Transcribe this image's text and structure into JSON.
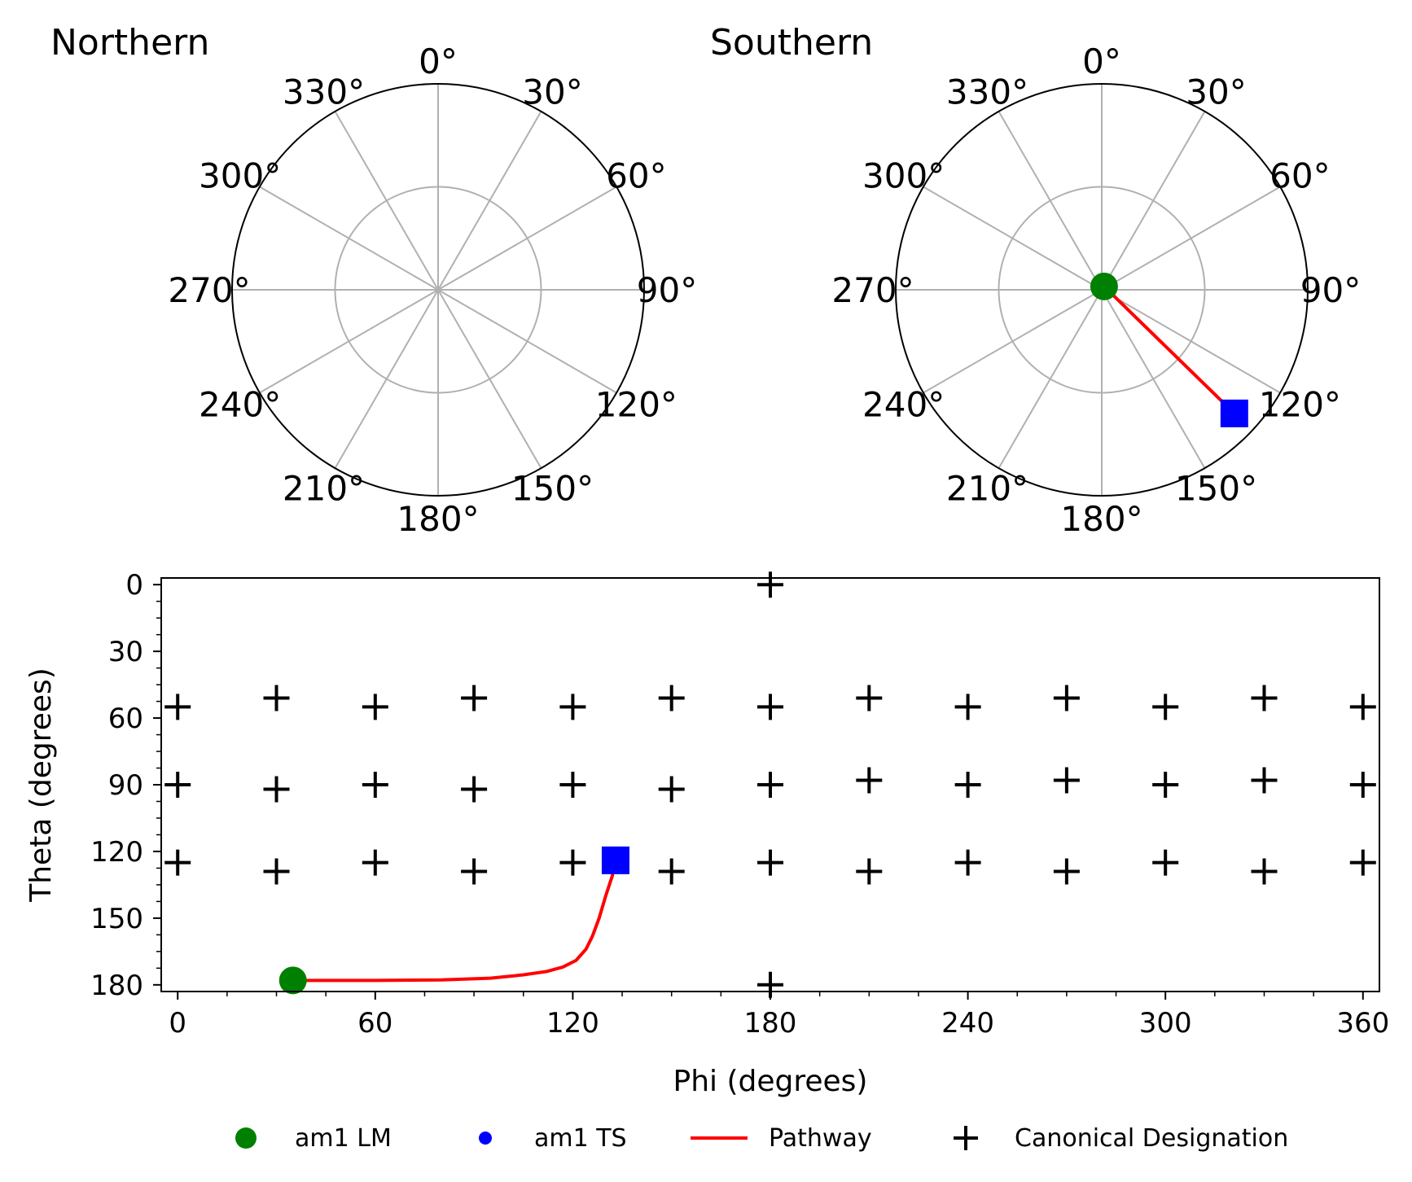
{
  "chart_data": [
    {
      "type": "polar",
      "title": "Northern",
      "angle_tick_labels": [
        "0°",
        "30°",
        "60°",
        "90°",
        "120°",
        "150°",
        "180°",
        "210°",
        "240°",
        "270°",
        "300°",
        "330°"
      ],
      "angle_direction": "clockwise",
      "zero_location": "top",
      "grid": true,
      "points": []
    },
    {
      "type": "polar",
      "title": "Southern",
      "angle_tick_labels": [
        "0°",
        "30°",
        "60°",
        "90°",
        "120°",
        "150°",
        "180°",
        "210°",
        "240°",
        "270°",
        "300°",
        "330°"
      ],
      "angle_direction": "clockwise",
      "zero_location": "top",
      "grid": true,
      "lm_point": {
        "phi": 35,
        "r": 0.02
      },
      "ts_point": {
        "phi": 133,
        "r": 0.88
      },
      "pathway": [
        {
          "phi": 35,
          "r": 0.02
        },
        {
          "phi": 133,
          "r": 0.88
        }
      ]
    },
    {
      "type": "scatter",
      "xlabel": "Phi (degrees)",
      "ylabel": "Theta (degrees)",
      "xlim": [
        -5,
        365
      ],
      "ylim": [
        183,
        -3
      ],
      "x_ticks": [
        "0",
        "60",
        "120",
        "180",
        "240",
        "300",
        "360"
      ],
      "y_ticks": [
        "0",
        "30",
        "60",
        "90",
        "120",
        "150",
        "180"
      ],
      "x_tick_values": [
        0,
        60,
        120,
        180,
        240,
        300,
        360
      ],
      "y_tick_values": [
        0,
        30,
        60,
        90,
        120,
        150,
        180
      ],
      "canonical_points": [
        [
          180,
          0
        ],
        [
          0,
          55
        ],
        [
          30,
          51
        ],
        [
          60,
          55
        ],
        [
          90,
          51
        ],
        [
          120,
          55
        ],
        [
          150,
          51
        ],
        [
          180,
          55
        ],
        [
          210,
          51
        ],
        [
          240,
          55
        ],
        [
          270,
          51
        ],
        [
          300,
          55
        ],
        [
          330,
          51
        ],
        [
          360,
          55
        ],
        [
          0,
          90
        ],
        [
          30,
          92
        ],
        [
          60,
          90
        ],
        [
          90,
          92
        ],
        [
          120,
          90
        ],
        [
          150,
          92
        ],
        [
          180,
          90
        ],
        [
          210,
          88
        ],
        [
          240,
          90
        ],
        [
          270,
          88
        ],
        [
          300,
          90
        ],
        [
          330,
          88
        ],
        [
          360,
          90
        ],
        [
          0,
          125
        ],
        [
          30,
          129
        ],
        [
          60,
          125
        ],
        [
          90,
          129
        ],
        [
          120,
          125
        ],
        [
          150,
          129
        ],
        [
          180,
          125
        ],
        [
          210,
          129
        ],
        [
          240,
          125
        ],
        [
          270,
          129
        ],
        [
          300,
          125
        ],
        [
          330,
          129
        ],
        [
          360,
          125
        ],
        [
          180,
          180
        ]
      ],
      "lm_point": [
        35,
        178
      ],
      "ts_point": [
        133,
        124
      ],
      "pathway": [
        [
          35,
          178
        ],
        [
          60,
          178
        ],
        [
          80,
          177.8
        ],
        [
          95,
          177
        ],
        [
          105,
          175.5
        ],
        [
          112,
          174
        ],
        [
          117,
          172
        ],
        [
          121,
          169
        ],
        [
          124,
          164
        ],
        [
          126,
          158
        ],
        [
          128,
          150
        ],
        [
          130,
          140
        ],
        [
          132,
          131
        ],
        [
          133,
          124
        ]
      ],
      "legend": [
        {
          "label": "am1 LM",
          "marker": "circle",
          "color": "#008000"
        },
        {
          "label": "am1 TS",
          "marker": "dot",
          "color": "#0000ff"
        },
        {
          "label": "Pathway",
          "marker": "line",
          "color": "#ff0000"
        },
        {
          "label": "Canonical Designation",
          "marker": "plus",
          "color": "#000000"
        }
      ],
      "legend_location": "bottom"
    }
  ]
}
